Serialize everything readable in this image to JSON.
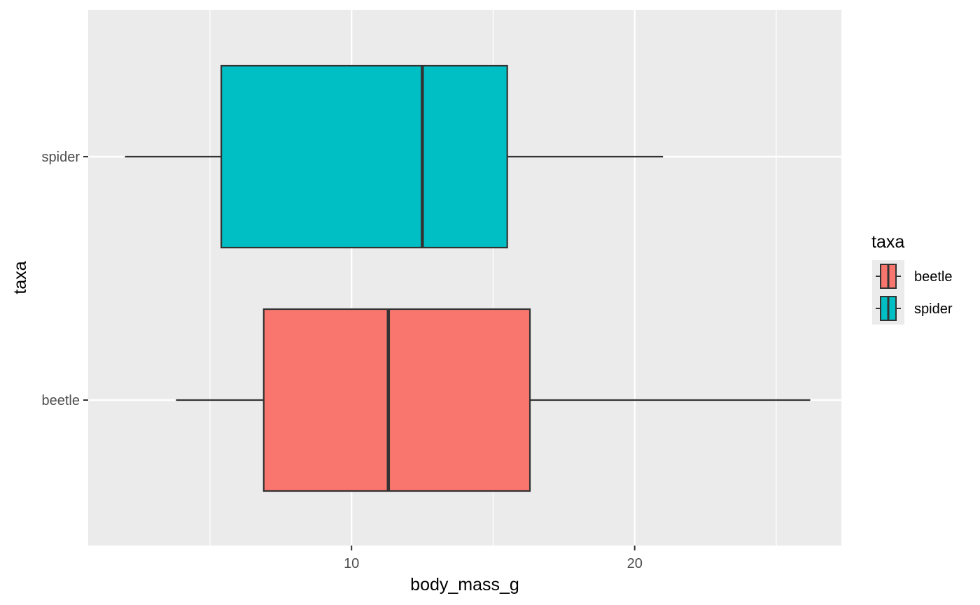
{
  "chart_data": {
    "type": "boxplot",
    "orientation": "horizontal",
    "xlabel": "body_mass_g",
    "ylabel": "taxa",
    "xlim": [
      0.7,
      27.3
    ],
    "x_ticks": [
      10,
      20
    ],
    "x_minor_ticks": [
      5,
      15,
      25
    ],
    "categories": [
      "beetle",
      "spider"
    ],
    "grid": true,
    "legend": {
      "title": "taxa",
      "position": "right",
      "entries": [
        {
          "label": "beetle",
          "color": "#F8766D"
        },
        {
          "label": "spider",
          "color": "#00BFC4"
        }
      ]
    },
    "boxes": [
      {
        "category": "beetle",
        "whisker_low": 3.8,
        "q1": 6.9,
        "median": 11.3,
        "q3": 16.3,
        "whisker_high": 26.2,
        "color": "#F8766D"
      },
      {
        "category": "spider",
        "whisker_low": 2.0,
        "q1": 5.4,
        "median": 12.5,
        "q3": 15.5,
        "whisker_high": 21.0,
        "color": "#00BFC4"
      }
    ],
    "colors": {
      "panel_background": "#EBEBEB",
      "grid": "#FFFFFF",
      "box_outline": "#333333",
      "legend_key_background": "#EBEBEB"
    }
  }
}
